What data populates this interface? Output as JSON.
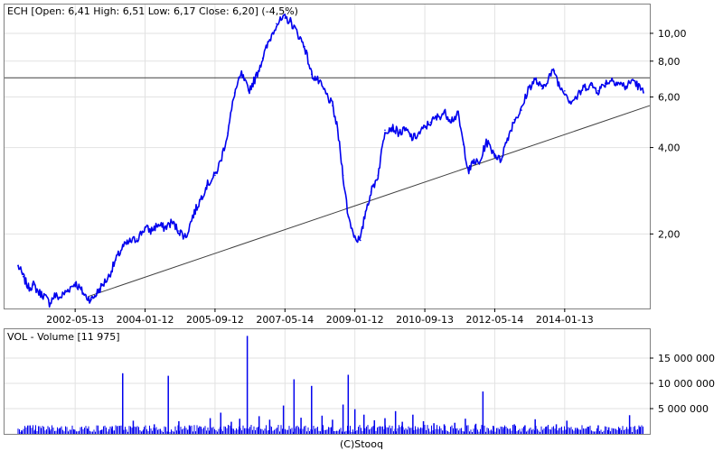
{
  "chart_data": [
    {
      "type": "line",
      "title": "ECH [Open: 6,41  High: 6,51  Low: 6,17  Close: 6,20] (-4,5%)",
      "scale": "log",
      "ylim": [
        1.1,
        12.6
      ],
      "xlim": [
        "2001-01-01",
        "2015-11-30"
      ],
      "x_ticks": [
        "2002-05-13",
        "2004-01-12",
        "2005-09-12",
        "2007-05-14",
        "2009-01-12",
        "2010-09-13",
        "2012-05-14",
        "2014-01-13"
      ],
      "y_ticks": [
        {
          "value": 10,
          "label": "10,00"
        },
        {
          "value": 8,
          "label": "8,00"
        },
        {
          "value": 6,
          "label": "6,00"
        },
        {
          "value": 4,
          "label": "4,00"
        },
        {
          "value": 2,
          "label": "2,00"
        }
      ],
      "grid": true,
      "series": [
        {
          "color": "#0000ee",
          "points": [
            [
              "2001-01-01",
              1.55
            ],
            [
              "2001-02-15",
              1.42
            ],
            [
              "2001-04-01",
              1.3
            ],
            [
              "2001-05-15",
              1.33
            ],
            [
              "2001-07-01",
              1.25
            ],
            [
              "2001-08-15",
              1.22
            ],
            [
              "2001-10-01",
              1.15
            ],
            [
              "2001-11-15",
              1.22
            ],
            [
              "2002-01-01",
              1.2
            ],
            [
              "2002-02-15",
              1.25
            ],
            [
              "2002-04-01",
              1.3
            ],
            [
              "2002-05-13",
              1.35
            ],
            [
              "2002-07-01",
              1.28
            ],
            [
              "2002-08-15",
              1.21
            ],
            [
              "2002-10-01",
              1.18
            ],
            [
              "2002-11-15",
              1.24
            ],
            [
              "2003-01-01",
              1.32
            ],
            [
              "2003-03-01",
              1.42
            ],
            [
              "2003-05-01",
              1.62
            ],
            [
              "2003-07-01",
              1.8
            ],
            [
              "2003-09-01",
              1.88
            ],
            [
              "2003-11-01",
              1.92
            ],
            [
              "2004-01-12",
              2.1
            ],
            [
              "2004-03-01",
              2.05
            ],
            [
              "2004-05-01",
              2.15
            ],
            [
              "2004-07-01",
              2.1
            ],
            [
              "2004-09-01",
              2.2
            ],
            [
              "2004-11-01",
              2.05
            ],
            [
              "2005-01-01",
              1.95
            ],
            [
              "2005-03-01",
              2.3
            ],
            [
              "2005-05-01",
              2.6
            ],
            [
              "2005-07-01",
              2.95
            ],
            [
              "2005-09-12",
              3.2
            ],
            [
              "2005-11-01",
              3.6
            ],
            [
              "2006-01-01",
              4.5
            ],
            [
              "2006-03-01",
              6.2
            ],
            [
              "2006-05-01",
              7.2
            ],
            [
              "2006-07-01",
              6.3
            ],
            [
              "2006-09-01",
              7.0
            ],
            [
              "2006-11-01",
              8.2
            ],
            [
              "2007-01-01",
              9.5
            ],
            [
              "2007-03-01",
              10.8
            ],
            [
              "2007-05-14",
              11.3
            ],
            [
              "2007-07-01",
              11.0
            ],
            [
              "2007-09-01",
              10.0
            ],
            [
              "2007-11-01",
              9.0
            ],
            [
              "2008-01-01",
              7.2
            ],
            [
              "2008-03-01",
              6.8
            ],
            [
              "2008-05-01",
              6.2
            ],
            [
              "2008-07-01",
              5.6
            ],
            [
              "2008-08-15",
              4.6
            ],
            [
              "2008-10-01",
              3.2
            ],
            [
              "2008-11-15",
              2.3
            ],
            [
              "2009-01-12",
              1.95
            ],
            [
              "2009-03-01",
              1.9
            ],
            [
              "2009-04-15",
              2.4
            ],
            [
              "2009-06-01",
              2.8
            ],
            [
              "2009-08-01",
              3.2
            ],
            [
              "2009-10-01",
              4.6
            ],
            [
              "2009-12-01",
              4.7
            ],
            [
              "2010-02-01",
              4.5
            ],
            [
              "2010-04-01",
              4.6
            ],
            [
              "2010-06-01",
              4.3
            ],
            [
              "2010-08-01",
              4.5
            ],
            [
              "2010-09-13",
              4.7
            ],
            [
              "2010-11-01",
              4.9
            ],
            [
              "2011-01-01",
              5.1
            ],
            [
              "2011-03-01",
              5.3
            ],
            [
              "2011-05-01",
              5.0
            ],
            [
              "2011-07-01",
              5.2
            ],
            [
              "2011-08-15",
              4.1
            ],
            [
              "2011-10-01",
              3.3
            ],
            [
              "2011-11-15",
              3.6
            ],
            [
              "2012-01-01",
              3.5
            ],
            [
              "2012-03-01",
              4.2
            ],
            [
              "2012-05-14",
              3.8
            ],
            [
              "2012-07-01",
              3.6
            ],
            [
              "2012-09-01",
              4.3
            ],
            [
              "2012-11-01",
              5.0
            ],
            [
              "2013-01-01",
              5.4
            ],
            [
              "2013-03-01",
              6.4
            ],
            [
              "2013-05-01",
              6.9
            ],
            [
              "2013-07-01",
              6.4
            ],
            [
              "2013-09-01",
              7.1
            ],
            [
              "2013-10-15",
              7.4
            ],
            [
              "2013-12-01",
              6.5
            ],
            [
              "2014-01-13",
              6.3
            ],
            [
              "2014-03-01",
              5.8
            ],
            [
              "2014-05-01",
              6.0
            ],
            [
              "2014-07-01",
              6.5
            ],
            [
              "2014-09-01",
              6.6
            ],
            [
              "2014-11-01",
              6.3
            ],
            [
              "2015-01-01",
              6.7
            ],
            [
              "2015-03-01",
              6.9
            ],
            [
              "2015-05-01",
              6.7
            ],
            [
              "2015-07-01",
              6.5
            ],
            [
              "2015-09-01",
              6.9
            ],
            [
              "2015-11-30",
              6.2
            ]
          ]
        }
      ],
      "annotations": [
        {
          "type": "horizontal_line",
          "y": 7.0,
          "color": "#404040"
        },
        {
          "type": "trendline",
          "from": [
            "2002-09-01",
            1.21
          ],
          "to": [
            "2015-11-30",
            5.6
          ],
          "color": "#404040"
        }
      ]
    },
    {
      "type": "bar",
      "title": "VOL - Volume [11 975]",
      "ylim": [
        0,
        20000000
      ],
      "y_ticks": [
        {
          "value": 15000000,
          "label": "15 000 000"
        },
        {
          "value": 10000000,
          "label": "10 000 000"
        },
        {
          "value": 5000000,
          "label": "5 000 000"
        }
      ],
      "grid": true,
      "series": [
        {
          "color": "#0000ee",
          "points": [
            [
              "2001-02-01",
              700000
            ],
            [
              "2001-06-01",
              900000
            ],
            [
              "2001-10-01",
              600000
            ],
            [
              "2002-01-01",
              1200000
            ],
            [
              "2002-05-01",
              900000
            ],
            [
              "2002-09-01",
              1000000
            ],
            [
              "2003-01-01",
              800000
            ],
            [
              "2003-04-01",
              1500000
            ],
            [
              "2003-07-01",
              12000000
            ],
            [
              "2003-10-01",
              2600000
            ],
            [
              "2004-01-01",
              900000
            ],
            [
              "2004-04-01",
              1900000
            ],
            [
              "2004-08-01",
              11500000
            ],
            [
              "2004-11-01",
              2500000
            ],
            [
              "2005-02-01",
              1700000
            ],
            [
              "2005-05-01",
              1500000
            ],
            [
              "2005-08-01",
              3100000
            ],
            [
              "2005-11-01",
              4200000
            ],
            [
              "2006-02-01",
              2400000
            ],
            [
              "2006-04-15",
              3000000
            ],
            [
              "2006-06-20",
              19400000
            ],
            [
              "2006-10-01",
              3500000
            ],
            [
              "2007-01-01",
              2800000
            ],
            [
              "2007-05-01",
              5600000
            ],
            [
              "2007-08-01",
              10800000
            ],
            [
              "2007-10-01",
              3200000
            ],
            [
              "2008-01-01",
              9500000
            ],
            [
              "2008-04-01",
              3600000
            ],
            [
              "2008-07-01",
              2800000
            ],
            [
              "2008-10-01",
              5800000
            ],
            [
              "2008-11-15",
              11700000
            ],
            [
              "2009-01-12",
              4900000
            ],
            [
              "2009-04-01",
              3800000
            ],
            [
              "2009-07-01",
              2700000
            ],
            [
              "2009-10-01",
              3100000
            ],
            [
              "2010-01-01",
              4500000
            ],
            [
              "2010-03-01",
              2400000
            ],
            [
              "2010-06-01",
              3800000
            ],
            [
              "2010-09-01",
              2500000
            ],
            [
              "2010-12-01",
              2100000
            ],
            [
              "2011-03-01",
              1900000
            ],
            [
              "2011-06-01",
              2200000
            ],
            [
              "2011-09-01",
              3000000
            ],
            [
              "2011-12-01",
              2000000
            ],
            [
              "2012-02-01",
              8400000
            ],
            [
              "2012-05-01",
              1600000
            ],
            [
              "2012-08-01",
              1300000
            ],
            [
              "2012-11-01",
              1900000
            ],
            [
              "2013-02-01",
              1700000
            ],
            [
              "2013-05-01",
              2900000
            ],
            [
              "2013-08-01",
              1400000
            ],
            [
              "2013-11-01",
              1900000
            ],
            [
              "2014-02-01",
              2600000
            ],
            [
              "2014-05-01",
              1200000
            ],
            [
              "2014-08-01",
              1400000
            ],
            [
              "2014-11-01",
              1700000
            ],
            [
              "2015-02-01",
              1300000
            ],
            [
              "2015-05-01",
              1100000
            ],
            [
              "2015-08-01",
              3700000
            ],
            [
              "2015-11-01",
              1400000
            ]
          ]
        }
      ]
    }
  ],
  "footer": {
    "credit": "(C)Stooq"
  }
}
